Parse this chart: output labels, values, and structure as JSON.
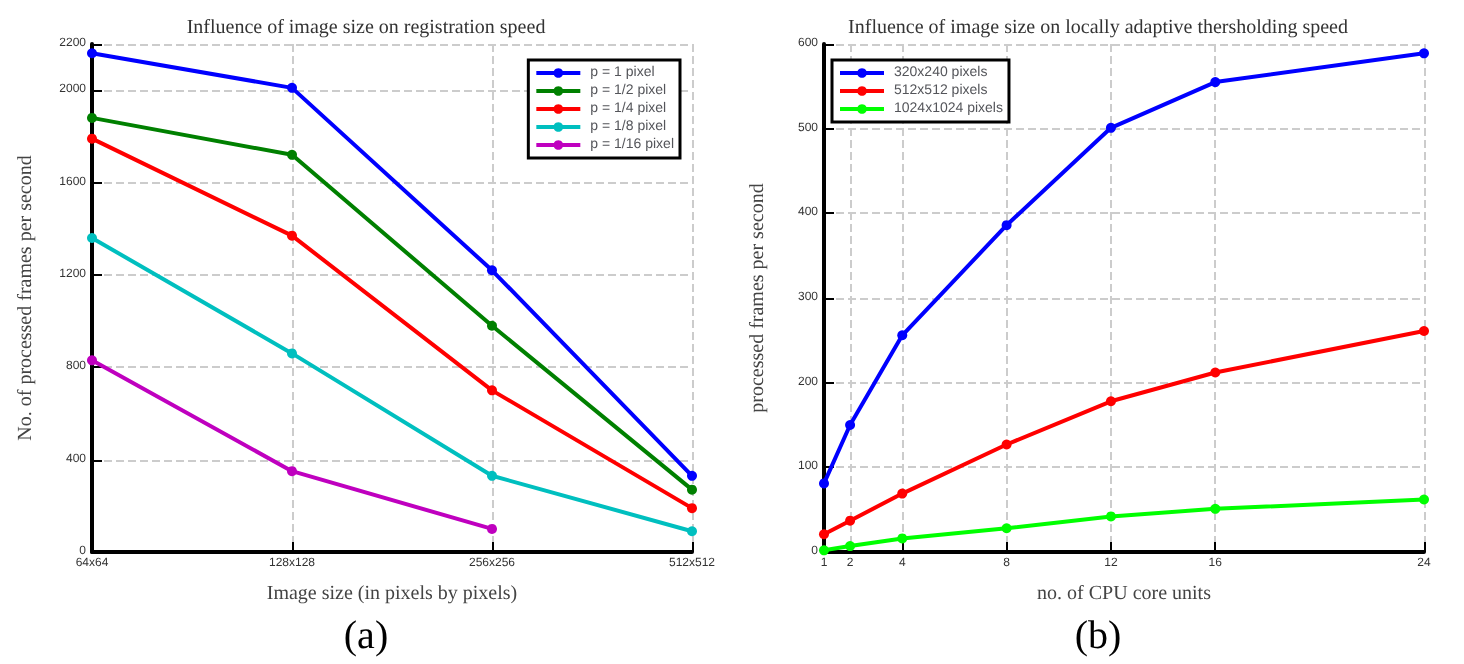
{
  "chart_data": [
    {
      "type": "line",
      "title": "Influence of image size on registration speed",
      "xlabel": "Image size (in pixels by pixels)",
      "ylabel": "No. of processed frames per second",
      "annotations": [
        "(a)"
      ],
      "categories": [
        "64x64",
        "128x128",
        "256x256",
        "512x512"
      ],
      "ylim": [
        0,
        2200
      ],
      "yticks": [
        0,
        400,
        800,
        1200,
        1600,
        2000,
        2200
      ],
      "grid": true,
      "legend": "top right",
      "marker": "circle",
      "line_style": "solid",
      "series": [
        {
          "name": "p = 1 pixel",
          "color": "#0000ff",
          "values": [
            2160,
            2010,
            1220,
            330
          ]
        },
        {
          "name": "p = 1/2 pixel",
          "color": "#008000",
          "values": [
            1880,
            1720,
            980,
            270
          ]
        },
        {
          "name": "p = 1/4 pixel",
          "color": "#ff0000",
          "values": [
            1790,
            1370,
            700,
            190
          ]
        },
        {
          "name": "p = 1/8 pixel",
          "color": "#00bfbf",
          "values": [
            1360,
            860,
            330,
            90
          ]
        },
        {
          "name": "p = 1/16 pixel",
          "color": "#bf00bf",
          "values": [
            830,
            350,
            100,
            null
          ]
        }
      ]
    },
    {
      "type": "line",
      "title": "Influence of image size on locally adaptive thersholding speed",
      "xlabel": "no. of CPU core units",
      "ylabel": "processed frames per second",
      "annotations": [
        "(b)"
      ],
      "x": [
        1,
        2,
        4,
        8,
        12,
        16,
        24
      ],
      "xlim": [
        1,
        24
      ],
      "xticks": [
        1,
        2,
        4,
        8,
        12,
        16,
        24
      ],
      "ylim": [
        0,
        600
      ],
      "yticks": [
        0,
        100,
        200,
        300,
        400,
        500,
        600
      ],
      "grid": true,
      "legend": "top left",
      "marker": "circle",
      "line_style": "solid",
      "series": [
        {
          "name": "320x240 pixels",
          "color": "#0000ff",
          "values": [
            81,
            150,
            256,
            386,
            501,
            555,
            589
          ]
        },
        {
          "name": "512x512 pixels",
          "color": "#ff0000",
          "values": [
            21,
            37,
            69,
            127,
            178,
            212,
            261
          ]
        },
        {
          "name": "1024x1024 pixels",
          "color": "#00ff00",
          "values": [
            2,
            7,
            16,
            28,
            42,
            51,
            62
          ]
        }
      ]
    }
  ]
}
